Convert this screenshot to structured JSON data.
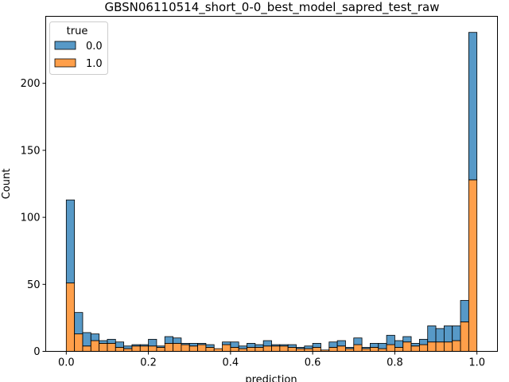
{
  "chart_data": {
    "type": "bar",
    "title": "GBSN06110514_short_0-0_best_model_sapred_test_raw",
    "xlabel": "prediction",
    "ylabel": "Count",
    "xlim": [
      -0.05,
      1.05
    ],
    "ylim": [
      0,
      250
    ],
    "x_ticks": [
      0.0,
      0.2,
      0.4,
      0.6,
      0.8,
      1.0
    ],
    "x_tick_labels": [
      "0.0",
      "0.2",
      "0.4",
      "0.6",
      "0.8",
      "1.0"
    ],
    "y_ticks": [
      0,
      50,
      100,
      150,
      200
    ],
    "y_tick_labels": [
      "0",
      "50",
      "100",
      "150",
      "200"
    ],
    "stacked": true,
    "bin_start": 0.0,
    "bin_width": 0.02,
    "series": [
      {
        "name": "1.0",
        "color": "#ff7f0e",
        "values": [
          51,
          13,
          4,
          8,
          6,
          6,
          3,
          2,
          4,
          4,
          4,
          3,
          6,
          6,
          5,
          4,
          5,
          3,
          2,
          5,
          3,
          2,
          3,
          3,
          4,
          4,
          4,
          3,
          2,
          2,
          3,
          1,
          3,
          4,
          2,
          5,
          2,
          3,
          2,
          5,
          3,
          7,
          4,
          5,
          7,
          7,
          7,
          8,
          22,
          128
        ]
      },
      {
        "name": "0.0",
        "color": "#1f77b4",
        "values": [
          62,
          16,
          10,
          5,
          2,
          3,
          4,
          2,
          1,
          1,
          5,
          1,
          5,
          4,
          1,
          2,
          1,
          2,
          0,
          2,
          4,
          2,
          3,
          2,
          4,
          1,
          1,
          2,
          1,
          2,
          3,
          0,
          4,
          4,
          1,
          5,
          1,
          3,
          4,
          7,
          5,
          4,
          2,
          4,
          12,
          10,
          12,
          11,
          16,
          110
        ]
      }
    ],
    "legend": {
      "title": "true",
      "position": "top-left",
      "entries": [
        {
          "label": "0.0",
          "color": "#1f77b4"
        },
        {
          "label": "1.0",
          "color": "#ff7f0e"
        }
      ]
    },
    "grid": false
  }
}
